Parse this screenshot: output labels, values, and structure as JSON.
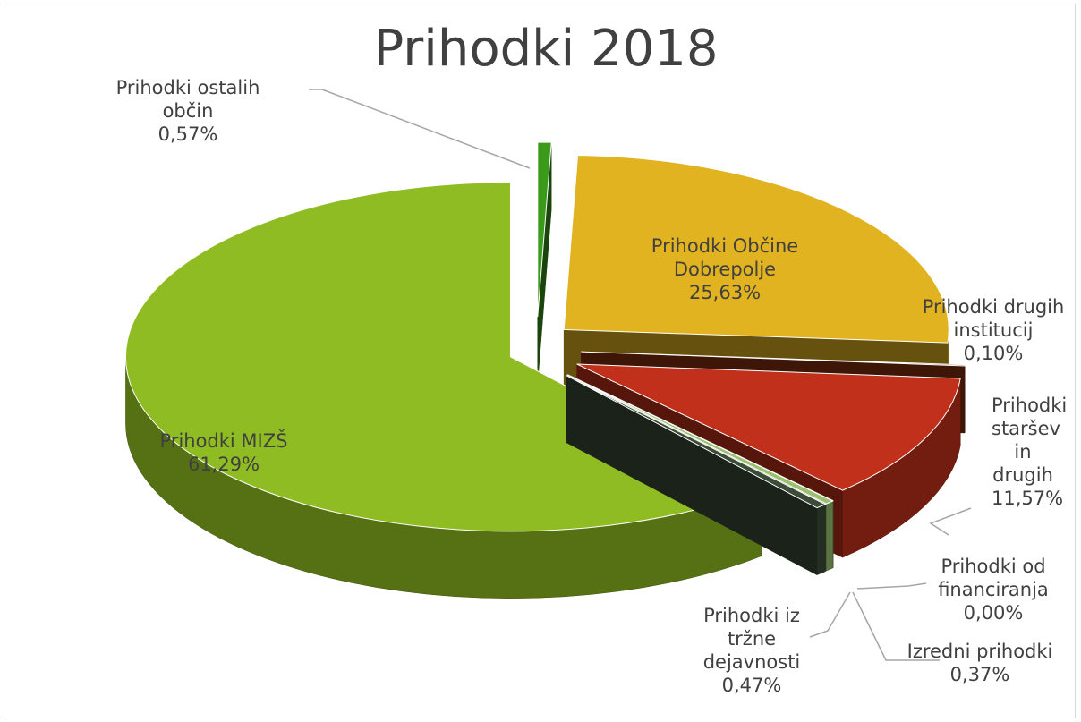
{
  "chart_data": {
    "type": "pie",
    "title": "Prihodki 2018",
    "categories": [
      "Prihodki ostalih občin",
      "Prihodki Občine Dobrepolje",
      "Prihodki drugih institucij",
      "Prihodki staršev in drugih",
      "Prihodki od financiranja",
      "Izredni prihodki",
      "Prihodki iz tržne dejavnosti",
      "Prihodki MIZŠ"
    ],
    "values": [
      0.57,
      25.63,
      0.1,
      11.57,
      0.0,
      0.37,
      0.47,
      61.29
    ],
    "value_labels": [
      "0,57%",
      "25,63%",
      "0,10%",
      "11,57%",
      "0,00%",
      "0,37%",
      "0,47%",
      "61,29%"
    ],
    "colors": [
      "#3a9a1a",
      "#e2b320",
      "#8a3010",
      "#c0301a",
      "#7aa050",
      "#9ac070",
      "#3c4c38",
      "#8fbc22"
    ]
  }
}
